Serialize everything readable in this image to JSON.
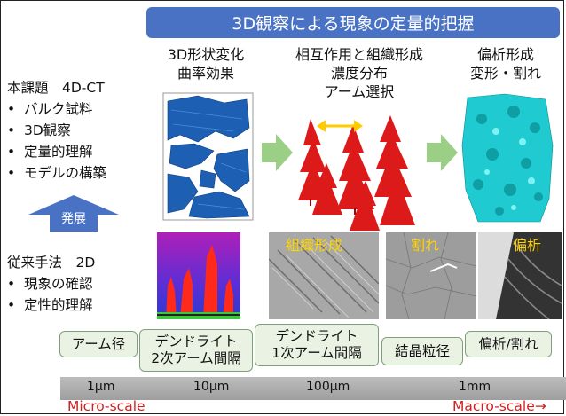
{
  "banner": {
    "title": "3D観察による現象の定量的把握"
  },
  "columns": {
    "c1": {
      "line1": "3D形状変化",
      "line2": "曲率効果"
    },
    "c2": {
      "line1": "相互作用と組織形成",
      "line2": "濃度分布",
      "line3": "アーム選択"
    },
    "c3": {
      "line1": "偏析形成",
      "line2": "変形・割れ"
    }
  },
  "left_top": {
    "title": "本課題　4D-CT",
    "items": [
      "バルク試料",
      "3D観察",
      "定量的理解",
      "モデルの構築"
    ]
  },
  "develop_label": "発展",
  "left_bottom": {
    "title": "従来手法　2D",
    "items": [
      "現象の確認",
      "定性的理解"
    ]
  },
  "micro_labels": {
    "organization": "組織形成",
    "crack": "割れ",
    "segregation": "偏析"
  },
  "pills": [
    {
      "lines": [
        "アーム径"
      ]
    },
    {
      "lines": [
        "デンドライト",
        "2次アーム間隔"
      ]
    },
    {
      "lines": [
        "デンドライト",
        "1次アーム間隔"
      ]
    },
    {
      "lines": [
        "結晶粒径"
      ]
    },
    {
      "lines": [
        "偏析/割れ"
      ]
    }
  ],
  "scale": {
    "ticks": [
      "1μm",
      "10μm",
      "100μm",
      "1mm"
    ],
    "micro": "Micro-scale",
    "macro": "Macro-scale→"
  },
  "colors": {
    "banner": "#4a72c4",
    "arrow_green": "#9ccf86",
    "arrow_blue": "#4a72c4",
    "dendrite_red": "#dd1a1a",
    "cluster_cyan": "#1fcbd0",
    "cluster_blue": "#1d5fb3"
  }
}
